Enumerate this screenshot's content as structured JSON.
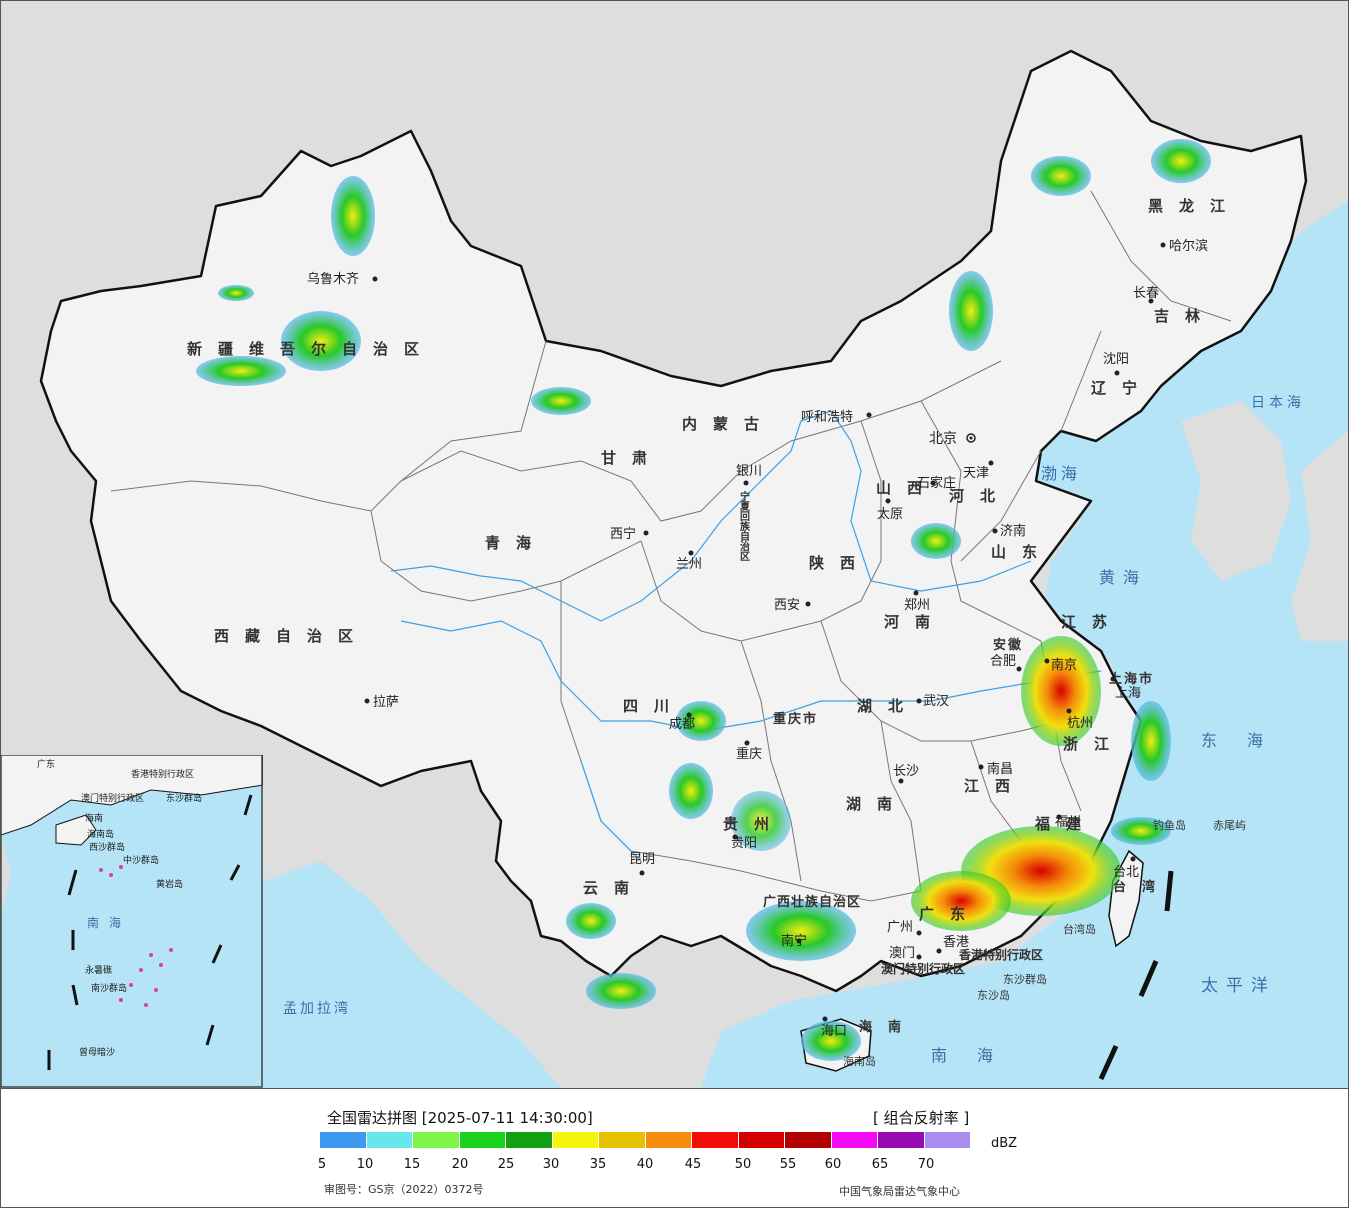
{
  "map": {
    "provinces": [
      "新疆维吾尔自治区",
      "西藏自治区",
      "青海",
      "甘肃",
      "内蒙古",
      "黑龙江",
      "吉林",
      "辽宁",
      "河北",
      "山西",
      "山东",
      "河南",
      "陕西",
      "四川",
      "重庆市",
      "湖北",
      "安徽",
      "江苏",
      "浙江",
      "江西",
      "湖南",
      "贵州",
      "云南",
      "广西壮族自治区",
      "广东",
      "福建",
      "台湾",
      "海南",
      "上海市",
      "宁夏回族自治区"
    ],
    "cities": [
      "乌鲁木齐",
      "拉萨",
      "西宁",
      "兰州",
      "银川",
      "呼和浩特",
      "北京",
      "天津",
      "石家庄",
      "太原",
      "济南",
      "郑州",
      "西安",
      "成都",
      "重庆",
      "武汉",
      "合肥",
      "南京",
      "上海",
      "杭州",
      "南昌",
      "长沙",
      "贵阳",
      "昆明",
      "南宁",
      "广州",
      "香港",
      "澳门",
      "福州",
      "台北",
      "海口",
      "哈尔滨",
      "长春",
      "沈阳"
    ],
    "seas": [
      "日本海",
      "渤海",
      "黄海",
      "东海",
      "太平洋",
      "南海",
      "孟加拉湾"
    ],
    "islands": [
      "钓鱼岛",
      "赤尾屿",
      "台湾岛",
      "海南岛",
      "东沙群岛",
      "东沙岛",
      "香港特别行政区",
      "澳门特别行政区"
    ],
    "inset": {
      "labels": [
        "广东",
        "香港特别行政区",
        "澳门特别行政区",
        "东沙群岛",
        "海南",
        "海南岛",
        "西沙群岛",
        "中沙群岛",
        "黄岩岛",
        "南海",
        "永暑礁",
        "南沙群岛",
        "曾母暗沙"
      ]
    }
  },
  "legend": {
    "title": "全国雷达拼图 [2025-07-11 14:30:00]",
    "product": "[ 组合反射率 ]",
    "unit": "dBZ",
    "ticks": [
      "5",
      "10",
      "15",
      "20",
      "25",
      "30",
      "35",
      "40",
      "45",
      "50",
      "55",
      "60",
      "65",
      "70"
    ],
    "colors": [
      "#3c9af0",
      "#69e6ec",
      "#7ef447",
      "#1bd21b",
      "#14a014",
      "#f5f50a",
      "#e6c200",
      "#f58c0a",
      "#f50a0a",
      "#d40000",
      "#b40000",
      "#f50af5",
      "#960ab4",
      "#aa8cf0"
    ],
    "review_number": "审图号：GS京（2022）0372号",
    "credit": "中国气象局雷达气象中心"
  },
  "colors": {
    "sea": "#b5e4f7",
    "land_china": "#f3f3f3",
    "land_other": "#dedede",
    "border": "#111111"
  }
}
